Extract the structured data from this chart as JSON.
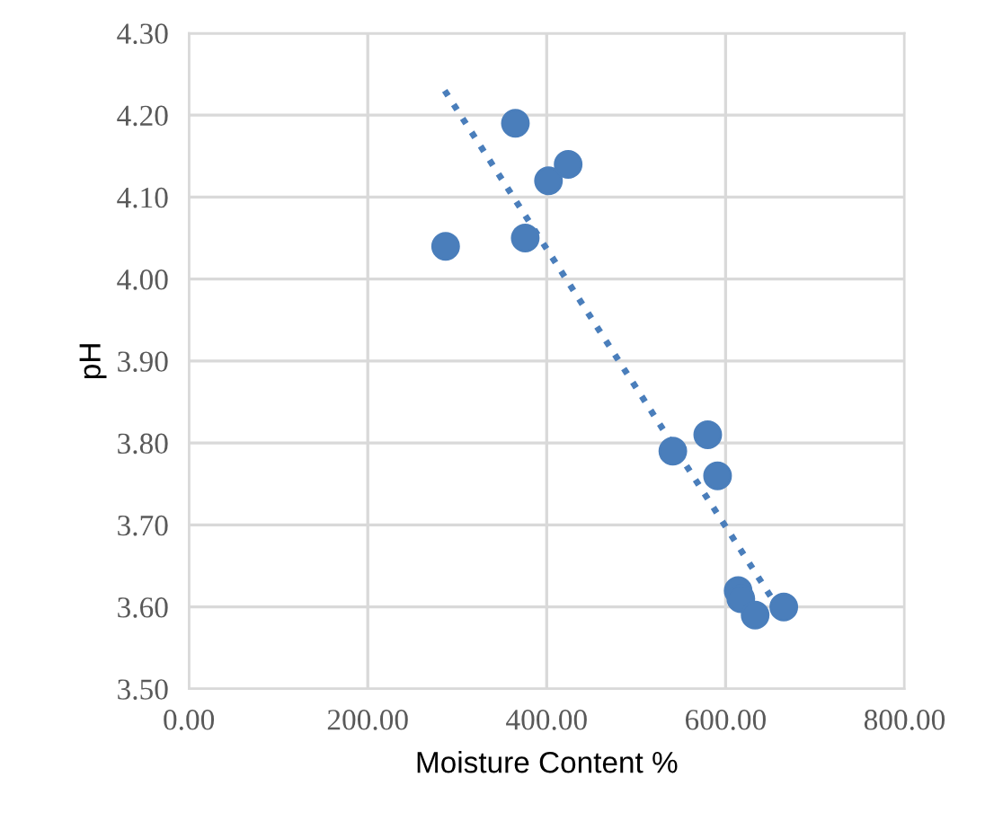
{
  "chart_data": {
    "type": "scatter",
    "xlabel": "Moisture Content %",
    "ylabel": "pH",
    "x": [
      287,
      365,
      376,
      402,
      424,
      541,
      580,
      591,
      614,
      617,
      633,
      665
    ],
    "series": [
      {
        "color": "#4a7ebb",
        "values": [
          4.04,
          4.19,
          4.05,
          4.12,
          4.14,
          3.79,
          3.81,
          3.76,
          3.62,
          3.61,
          3.59,
          3.6
        ],
        "marker": "circle"
      },
      {
        "type": "line",
        "color": "#4a7ebb",
        "x": [
          286,
          652
        ],
        "values": [
          4.23,
          3.61
        ],
        "line_style": "dotted",
        "marker": "none"
      }
    ],
    "xlim": [
      0,
      800
    ],
    "ylim": [
      3.5,
      4.3
    ],
    "xticks": [
      {
        "value": 0,
        "label": "0.00"
      },
      {
        "value": 200,
        "label": "200.00"
      },
      {
        "value": 400,
        "label": "400.00"
      },
      {
        "value": 600,
        "label": "600.00"
      },
      {
        "value": 800,
        "label": "800.00"
      }
    ],
    "yticks": [
      {
        "value": 3.5,
        "label": "3.50"
      },
      {
        "value": 3.6,
        "label": "3.60"
      },
      {
        "value": 3.7,
        "label": "3.70"
      },
      {
        "value": 3.8,
        "label": "3.80"
      },
      {
        "value": 3.9,
        "label": "3.90"
      },
      {
        "value": 4.0,
        "label": "4.00"
      },
      {
        "value": 4.1,
        "label": "4.10"
      },
      {
        "value": 4.2,
        "label": "4.20"
      },
      {
        "value": 4.3,
        "label": "4.30"
      }
    ],
    "grid": true,
    "legend": false
  }
}
